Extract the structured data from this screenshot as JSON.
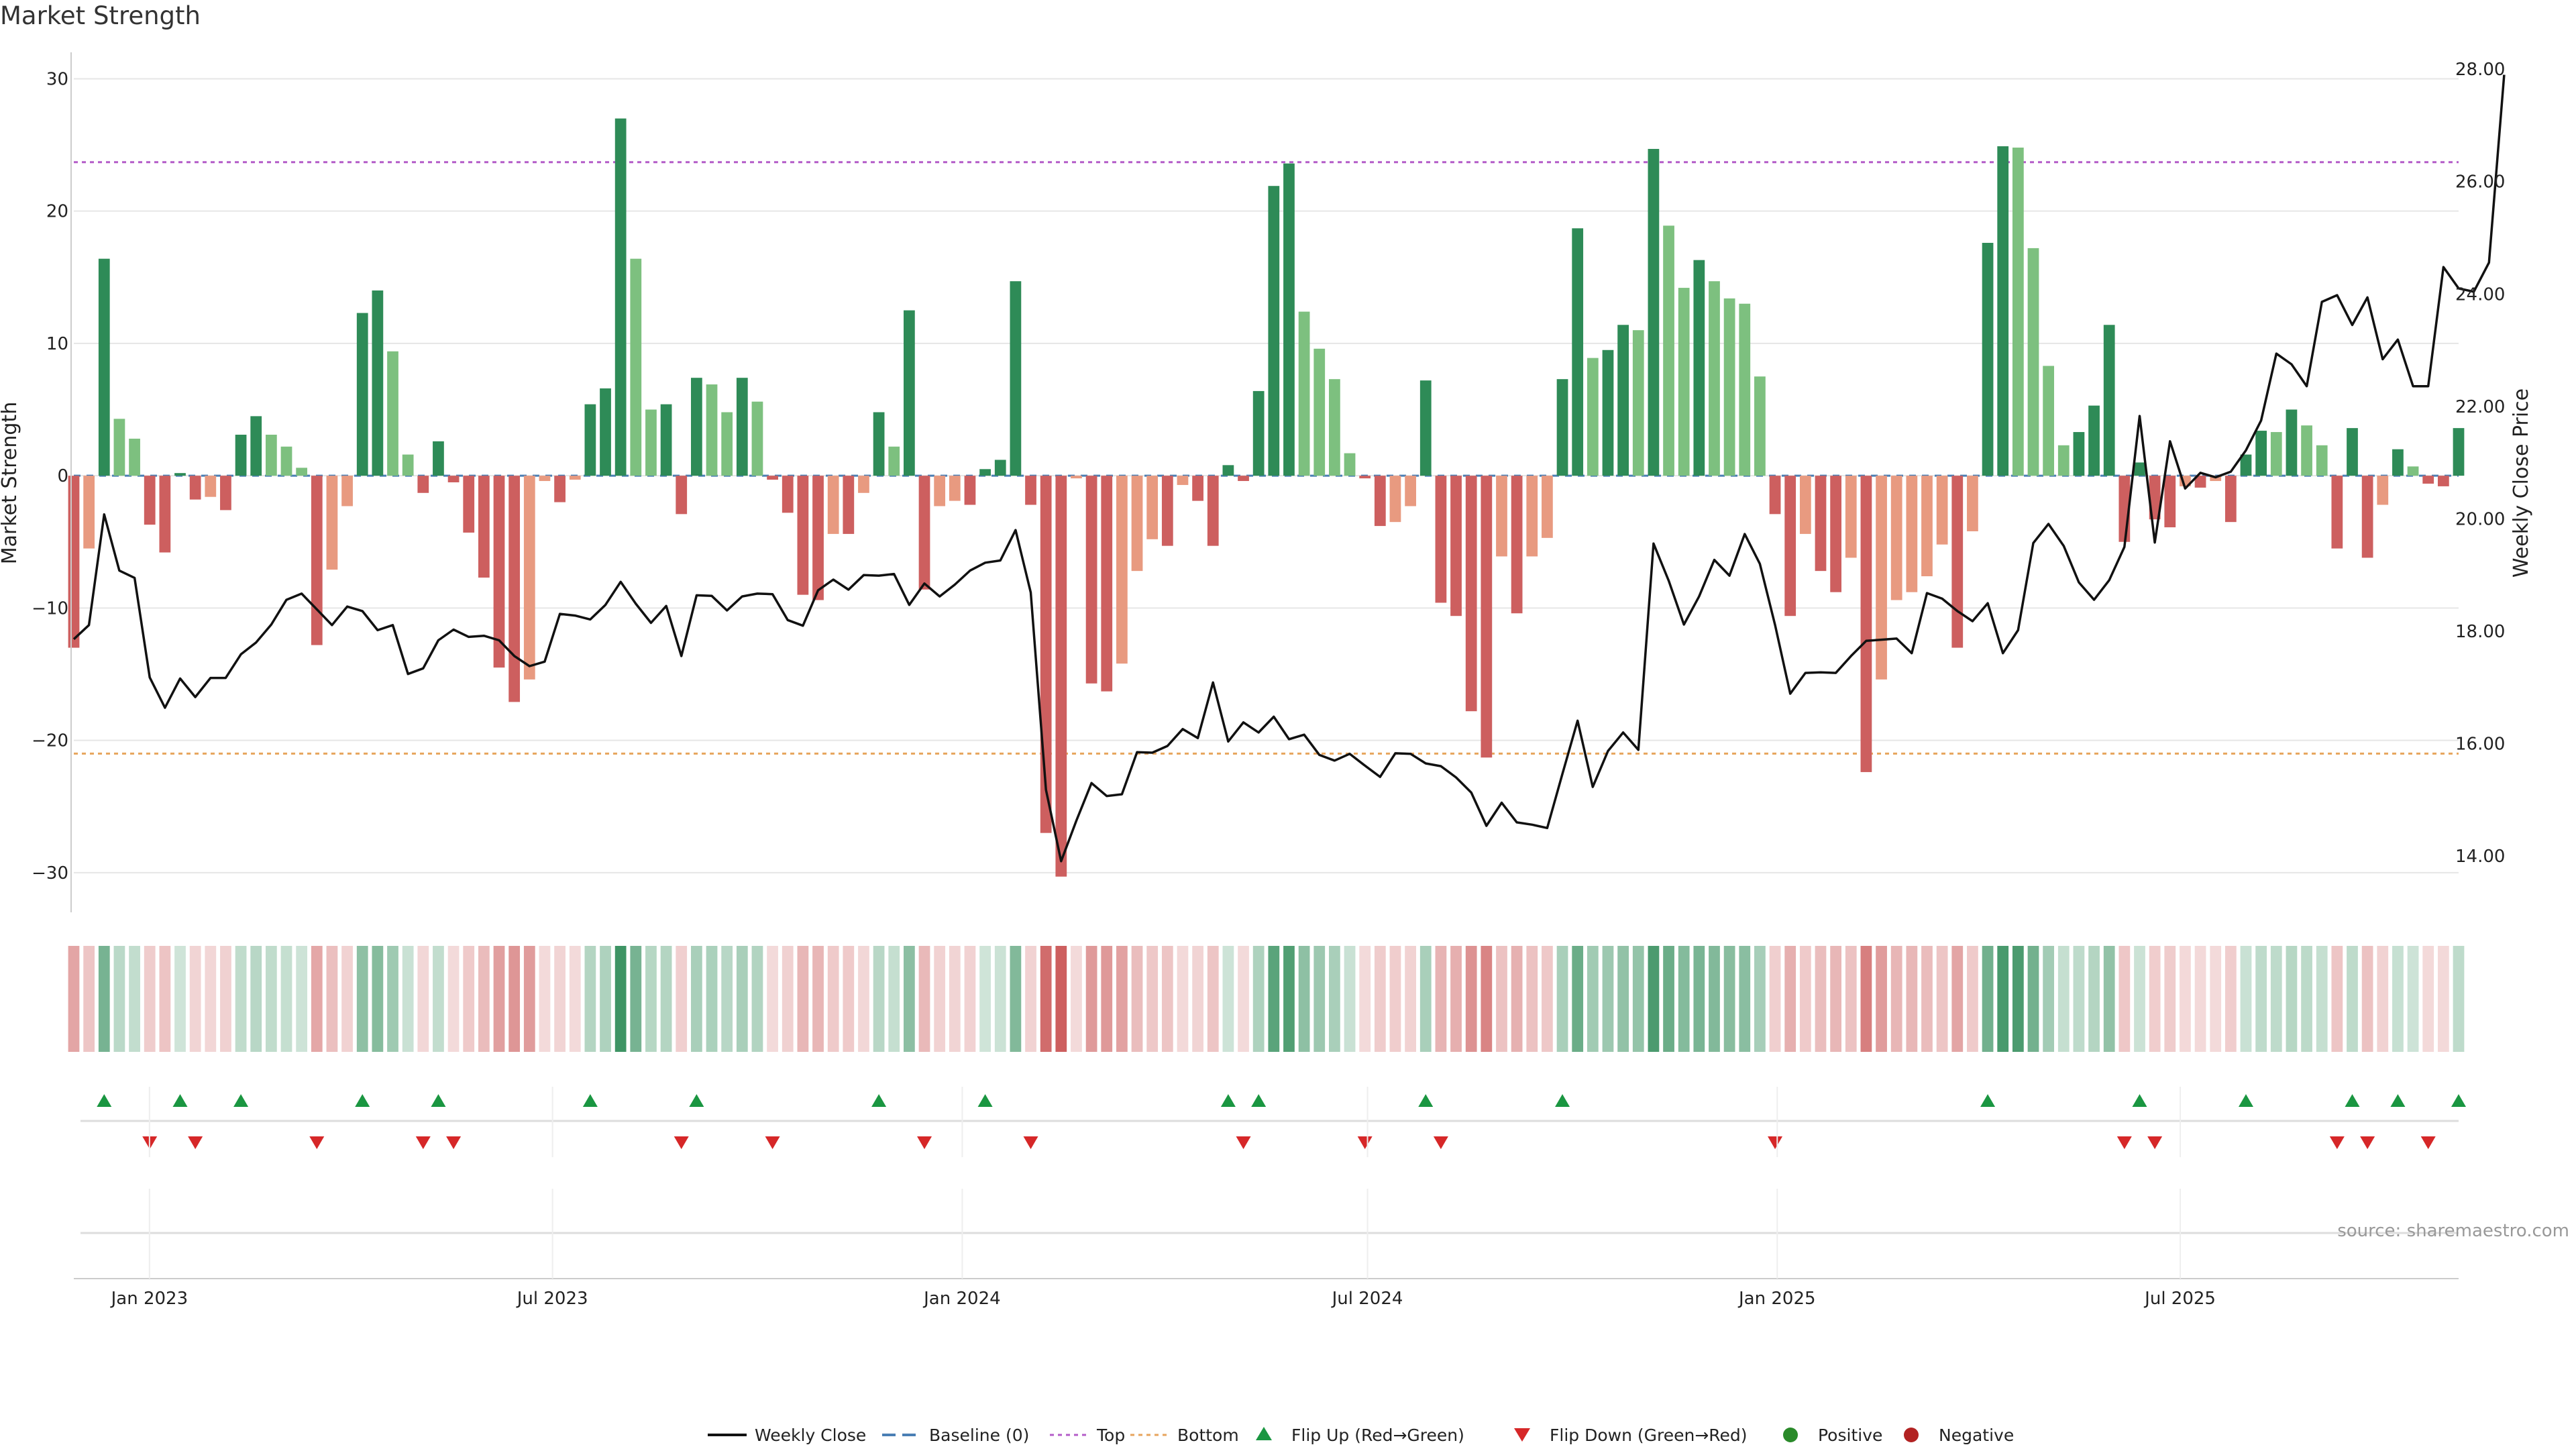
{
  "title": "Market Strength",
  "source": "source: sharemaestro.com",
  "chart_data": {
    "type": "bar",
    "ylabel": "Market Strength",
    "y2label": "Weekly Close Price",
    "ylim": [
      -33,
      32
    ],
    "y2lim": [
      13.0,
      28.3
    ],
    "yticks": [
      "30",
      "20",
      "10",
      "0",
      "−10",
      "−20",
      "−30"
    ],
    "ytick_values": [
      30,
      20,
      10,
      0,
      -10,
      -20,
      -30
    ],
    "y2ticks": [
      "28.00",
      "26.00",
      "24.00",
      "22.00",
      "20.00",
      "18.00",
      "16.00",
      "14.00"
    ],
    "y2tick_values": [
      28,
      26,
      24,
      22,
      20,
      18,
      16,
      14
    ],
    "top_line": 23.7,
    "bottom_line": -21.0,
    "x_start": "2022-11-28",
    "x_end": "2025-11-03",
    "x_tick_labels": [
      "Jan 2023",
      "Jul 2023",
      "Jan 2024",
      "Jul 2024",
      "Jan 2025",
      "Jul 2025"
    ],
    "x_tick_dates": [
      "2023-01-01",
      "2023-07-01",
      "2024-01-01",
      "2024-07-01",
      "2025-01-01",
      "2025-07-01"
    ],
    "strength": [
      -13,
      -5.5,
      16.4,
      4.3,
      2.8,
      -3.7,
      -5.8,
      0.2,
      -1.8,
      -1.6,
      -2.6,
      3.1,
      4.5,
      3.1,
      2.2,
      0.6,
      -12.8,
      -7.1,
      -2.3,
      12.3,
      14,
      9.4,
      1.6,
      -1.3,
      2.6,
      -0.5,
      -4.3,
      -7.7,
      -14.5,
      -17.1,
      -15.4,
      -0.4,
      -2,
      -0.3,
      5.4,
      6.6,
      27,
      16.4,
      5,
      5.4,
      -2.9,
      7.4,
      6.9,
      4.8,
      7.4,
      5.6,
      -0.3,
      -2.8,
      -9,
      -9.4,
      -4.4,
      -4.4,
      -1.3,
      4.8,
      2.2,
      12.5,
      -8.6,
      -2.3,
      -1.9,
      -2.2,
      0.5,
      1.2,
      14.7,
      -2.2,
      -27,
      -30.3,
      -0.2,
      -15.7,
      -16.3,
      -14.2,
      -7.2,
      -4.8,
      -5.3,
      -0.7,
      -1.9,
      -5.3,
      0.8,
      -0.4,
      6.4,
      21.9,
      23.6,
      12.4,
      9.6,
      7.3,
      1.7,
      -0.2,
      -3.8,
      -3.5,
      -2.3,
      7.2,
      -9.6,
      -10.6,
      -17.8,
      -21.3,
      -6.1,
      -10.4,
      -6.1,
      -4.7,
      7.3,
      18.7,
      8.9,
      9.5,
      11.4,
      11,
      24.7,
      18.9,
      14.2,
      16.3,
      14.7,
      13.4,
      13,
      7.5,
      -2.9,
      -10.6,
      -4.4,
      -7.2,
      -8.8,
      -6.2,
      -22.4,
      -15.4,
      -9.4,
      -8.8,
      -7.6,
      -5.2,
      -13,
      -4.2,
      17.6,
      24.9,
      24.8,
      17.2,
      8.3,
      2.3,
      3.3,
      5.3,
      11.4,
      -5,
      1,
      -3.3,
      -3.9,
      -0.8,
      -0.9,
      -0.4,
      -3.5,
      1.6,
      3.4,
      3.3,
      5,
      3.8,
      2.3,
      -5.5,
      3.6,
      -6.2,
      -2.2,
      2,
      0.7,
      -0.6,
      -0.8,
      3.6
    ],
    "weekly_close": [
      17.86,
      18.11,
      20.08,
      19.08,
      18.95,
      17.18,
      16.64,
      17.16,
      16.83,
      17.17,
      17.17,
      17.59,
      17.8,
      18.12,
      18.56,
      18.67,
      18.39,
      18.11,
      18.44,
      18.36,
      18.02,
      18.11,
      17.24,
      17.34,
      17.84,
      18.03,
      17.9,
      17.92,
      17.84,
      17.56,
      17.38,
      17.46,
      18.31,
      18.28,
      18.21,
      18.47,
      18.88,
      18.49,
      18.15,
      18.45,
      17.56,
      18.64,
      18.63,
      18.37,
      18.62,
      18.67,
      18.66,
      18.2,
      18.1,
      18.73,
      18.92,
      18.74,
      19,
      18.99,
      19.02,
      18.47,
      18.85,
      18.62,
      18.83,
      19.08,
      19.22,
      19.26,
      19.8,
      18.69,
      15.18,
      13.91,
      14.63,
      15.3,
      15.07,
      15.1,
      15.85,
      15.84,
      15.96,
      16.26,
      16.1,
      17.09,
      16.04,
      16.38,
      16.2,
      16.48,
      16.08,
      16.16,
      15.8,
      15.7,
      15.82,
      15.61,
      15.41,
      15.83,
      15.82,
      15.65,
      15.6,
      15.4,
      15.13,
      14.54,
      14.95,
      14.6,
      14.56,
      14.5,
      15.46,
      16.41,
      15.23,
      15.87,
      16.2,
      15.89,
      19.56,
      18.9,
      18.12,
      18.62,
      19.27,
      18.99,
      19.73,
      19.2,
      18.11,
      16.89,
      17.26,
      17.27,
      17.26,
      17.56,
      17.83,
      17.85,
      17.87,
      17.61,
      18.68,
      18.58,
      18.36,
      18.18,
      18.5,
      17.61,
      18.02,
      19.57,
      19.91,
      19.52,
      18.87,
      18.56,
      18.91,
      19.5,
      21.83,
      19.58,
      21.38,
      20.54,
      20.82,
      20.74,
      20.84,
      21.22,
      21.75,
      22.94,
      22.75,
      22.36,
      23.86,
      23.98,
      23.45,
      23.94,
      22.84,
      23.19,
      22.36,
      22.36,
      24.48,
      24.1,
      24.04,
      24.56,
      27.9
    ],
    "series": [
      {
        "name": "Weekly Close"
      },
      {
        "name": "Baseline (0)"
      },
      {
        "name": "Top"
      },
      {
        "name": "Bottom"
      },
      {
        "name": "Flip Up (Red→Green)"
      },
      {
        "name": "Flip Down (Green→Red)"
      },
      {
        "name": "Positive"
      },
      {
        "name": "Negative"
      }
    ],
    "colors": {
      "pos_strong": "#2e8b57",
      "pos_weak": "#7dc07f",
      "neg_strong": "#cd5f5f",
      "neg_weak": "#e89a80",
      "line": "#111111",
      "baseline": "#4a7fb5",
      "top": "#b45cc8",
      "bottom": "#e7a55d",
      "flip_up": "#1a9641",
      "flip_down": "#d62728",
      "positive_dot": "#2a8a2a",
      "negative_dot": "#b22222"
    },
    "legend_position": "bottom-center"
  }
}
